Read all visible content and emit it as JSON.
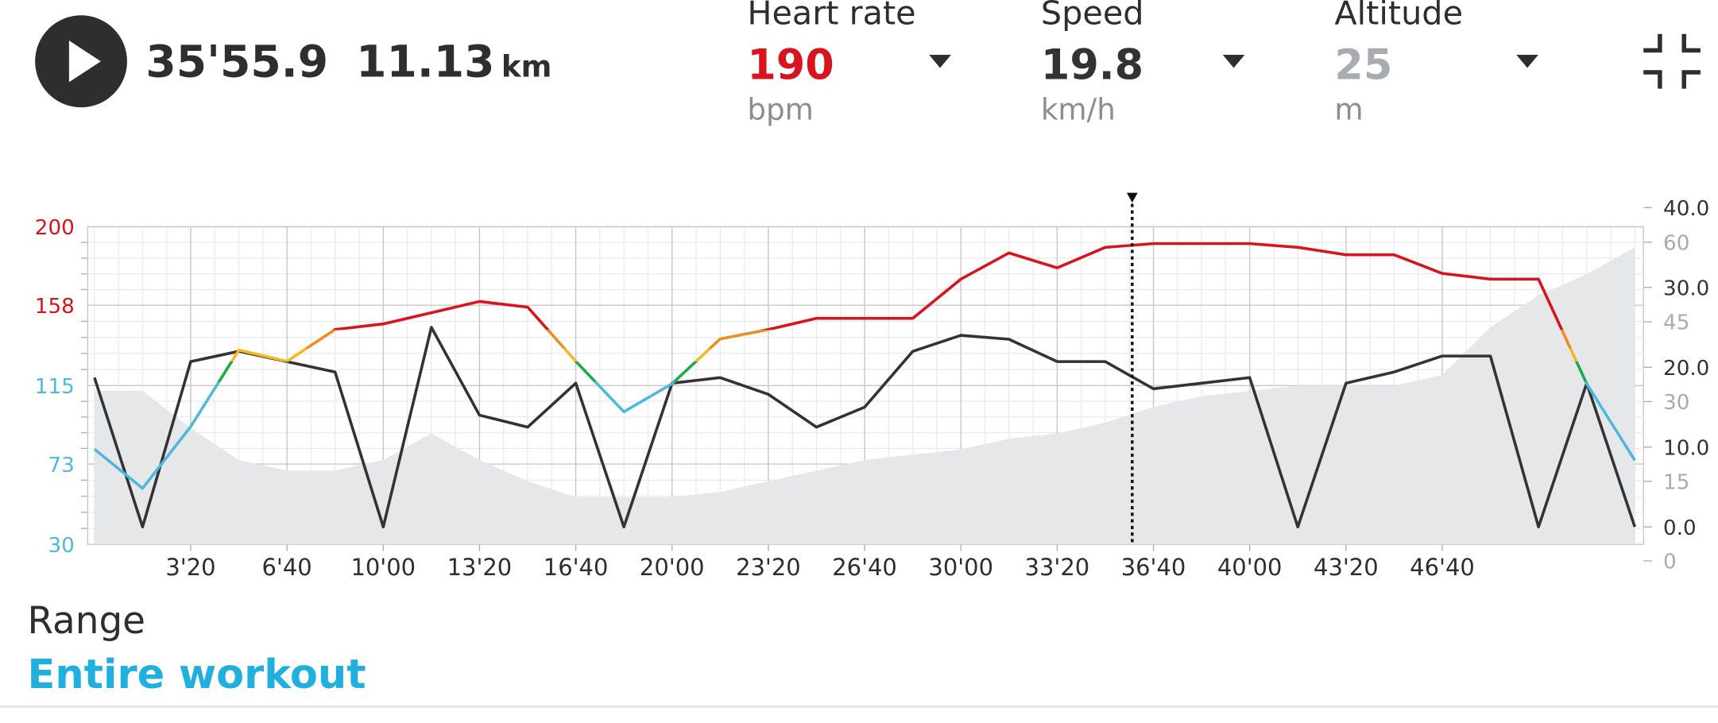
{
  "workout": {
    "time": "35'55.9",
    "distance": 11.13,
    "distance_unit": "km"
  },
  "metrics": [
    {
      "name": "Heart rate",
      "value": 190,
      "unit": "bpm",
      "color": "#d8141e"
    },
    {
      "name": "Speed",
      "value": 19.8,
      "unit": "km/h",
      "color": "#333333"
    },
    {
      "name": "Altitude",
      "value": 25,
      "unit": "m",
      "color": "#a8abb0"
    }
  ],
  "chart_data": {
    "type": "line",
    "cursor": 2155.9,
    "x": [
      0,
      100,
      200,
      300,
      400,
      500,
      600,
      700,
      800,
      900,
      1000,
      1100,
      1200,
      1300,
      1400,
      1500,
      1600,
      1700,
      1800,
      1900,
      2000,
      2100,
      2200,
      2300,
      2400,
      2500,
      2600,
      2700,
      2800,
      2900,
      3000,
      3100,
      3200
    ],
    "xlim": [
      -14,
      3218
    ],
    "xticks": [
      {
        "value": 200,
        "label": "3'20"
      },
      {
        "value": 400,
        "label": "6'40"
      },
      {
        "value": 600,
        "label": "10'00"
      },
      {
        "value": 800,
        "label": "13'20"
      },
      {
        "value": 1000,
        "label": "16'40"
      },
      {
        "value": 1200,
        "label": "20'00"
      },
      {
        "value": 1400,
        "label": "23'20"
      },
      {
        "value": 1600,
        "label": "26'40"
      },
      {
        "value": 1800,
        "label": "30'00"
      },
      {
        "value": 2000,
        "label": "33'20"
      },
      {
        "value": 2200,
        "label": "36'40"
      },
      {
        "value": 2400,
        "label": "40'00"
      },
      {
        "value": 2600,
        "label": "43'20"
      },
      {
        "value": 2800,
        "label": "46'40"
      }
    ],
    "ylim": [
      30,
      200
    ],
    "yticks": [
      30,
      73,
      115,
      158,
      200
    ],
    "y2lim": [
      -2.2,
      37.6
    ],
    "y2ticks": [
      {
        "value": 0,
        "label": "0.0"
      },
      {
        "value": 10,
        "label": "10.0"
      },
      {
        "value": 20,
        "label": "20.0"
      },
      {
        "value": 30,
        "label": "30.0"
      },
      {
        "value": 40,
        "label": "40.0"
      }
    ],
    "y3lim": [
      3.1,
      62.9
    ],
    "y3ticks": [
      0,
      15,
      30,
      45,
      60
    ],
    "grid": true,
    "series": [
      {
        "name": "Altitude",
        "axis": "y3",
        "kind": "area",
        "color": "#e6e7e8",
        "tick_color": "#a8abb0",
        "values": [
          32,
          32,
          25,
          19,
          17,
          17,
          19,
          24,
          19,
          15,
          12,
          12,
          12,
          13,
          15,
          17,
          19,
          20,
          21,
          23,
          24,
          26,
          29,
          31,
          32,
          33,
          33,
          33,
          35,
          44,
          50,
          54,
          59
        ]
      },
      {
        "name": "Speed",
        "axis": "y2",
        "kind": "line",
        "color": "#333333",
        "tick_color": "#333333",
        "values": [
          18.7,
          0,
          20.7,
          22,
          20.7,
          19.4,
          0,
          25,
          14,
          12.5,
          18,
          0,
          18,
          18.7,
          16.6,
          12.5,
          15,
          22,
          24,
          23.5,
          20.7,
          20.7,
          17.3,
          18,
          18.7,
          0,
          18,
          19.4,
          21.4,
          21.4,
          0,
          18,
          0
        ]
      },
      {
        "name": "Heart rate",
        "axis": "y",
        "kind": "line",
        "zones": [
          {
            "min": 30,
            "color": "#4fb8dc"
          },
          {
            "min": 117,
            "color": "#1aab4b"
          },
          {
            "min": 128,
            "color": "#f5b823"
          },
          {
            "min": 135,
            "color": "#f08c22"
          },
          {
            "min": 145,
            "color": "#d8141e"
          }
        ],
        "values": [
          81,
          60,
          93,
          134,
          128,
          145,
          148,
          154,
          160,
          157,
          128,
          101,
          116,
          140,
          145,
          151,
          151,
          151,
          172,
          186,
          178,
          189,
          191,
          191,
          191,
          189,
          185,
          185,
          175,
          172,
          172,
          116,
          75
        ]
      }
    ]
  },
  "range": {
    "label": "Range",
    "value": "Entire workout"
  }
}
